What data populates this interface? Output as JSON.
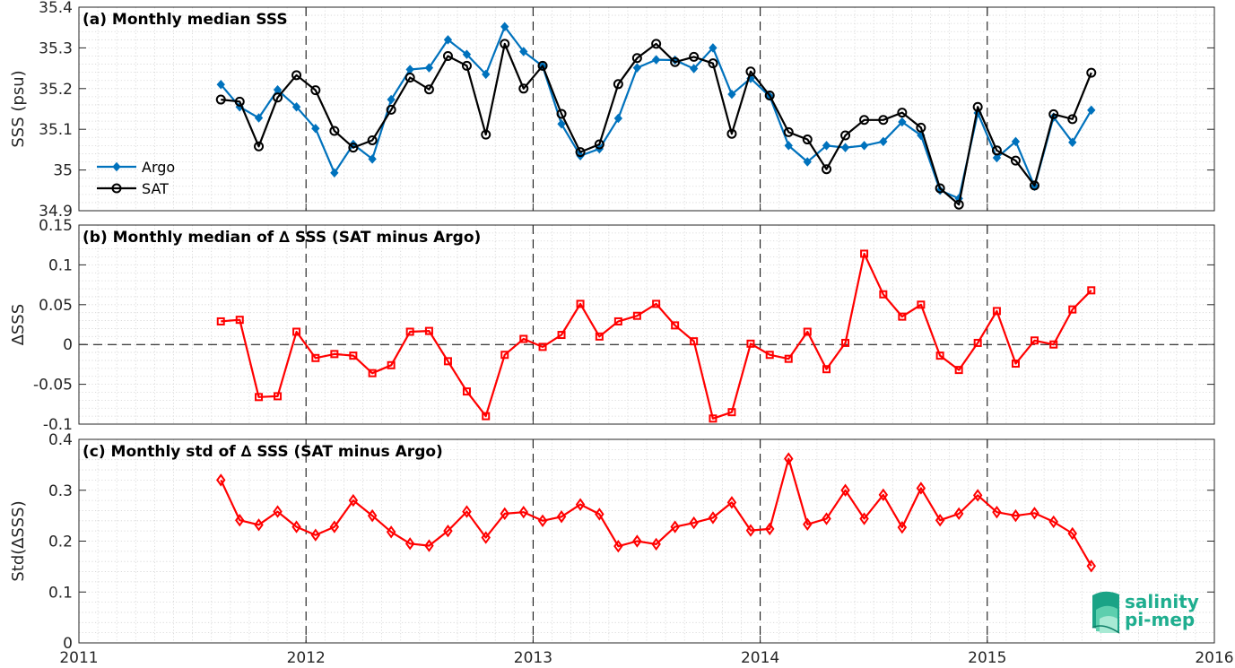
{
  "chart_data": [
    {
      "type": "line",
      "title": "(a) Monthly median SSS",
      "xlabel": "",
      "ylabel": "SSS (psu)",
      "xlim": [
        2011,
        2016
      ],
      "ylim": [
        34.9,
        35.4
      ],
      "yticks": [
        34.9,
        35,
        35.1,
        35.2,
        35.3,
        35.4
      ],
      "ytick_labels": [
        "34.9",
        "35",
        "35.1",
        "35.2",
        "35.3",
        "35.4"
      ],
      "grid": true,
      "legend": "bottom-left",
      "x": [
        2011.625,
        2011.708,
        2011.792,
        2011.875,
        2011.958,
        2012.042,
        2012.125,
        2012.208,
        2012.292,
        2012.375,
        2012.458,
        2012.542,
        2012.625,
        2012.708,
        2012.792,
        2012.875,
        2012.958,
        2013.042,
        2013.125,
        2013.208,
        2013.292,
        2013.375,
        2013.458,
        2013.542,
        2013.625,
        2013.708,
        2013.792,
        2013.875,
        2013.958,
        2014.042,
        2014.125,
        2014.208,
        2014.292,
        2014.375,
        2014.458,
        2014.542,
        2014.625,
        2014.708,
        2014.792,
        2014.875,
        2014.958,
        2015.042,
        2015.125,
        2015.208,
        2015.292,
        2015.375,
        2015.458
      ],
      "series": [
        {
          "name": "Argo",
          "color": "#0072BD",
          "marker": "diamond",
          "values": [
            35.21,
            35.155,
            35.128,
            35.197,
            35.155,
            35.102,
            34.993,
            35.063,
            35.027,
            35.173,
            35.247,
            35.251,
            35.32,
            35.284,
            35.235,
            35.352,
            35.291,
            35.255,
            35.113,
            35.035,
            35.052,
            35.127,
            35.251,
            35.271,
            35.27,
            35.249,
            35.3,
            35.186,
            35.225,
            35.181,
            35.06,
            35.02,
            35.06,
            35.055,
            35.06,
            35.07,
            35.118,
            35.085,
            34.95,
            34.93,
            35.14,
            35.03,
            35.07,
            34.96,
            35.13,
            35.068,
            35.147
          ]
        },
        {
          "name": "SAT",
          "color": "#000000",
          "marker": "circle",
          "values": [
            35.173,
            35.168,
            35.058,
            35.178,
            35.233,
            35.196,
            35.096,
            35.055,
            35.073,
            35.148,
            35.227,
            35.198,
            35.28,
            35.256,
            35.087,
            35.31,
            35.2,
            35.256,
            35.138,
            35.044,
            35.063,
            35.211,
            35.275,
            35.31,
            35.265,
            35.278,
            35.262,
            35.089,
            35.242,
            35.183,
            35.093,
            35.075,
            35.002,
            35.085,
            35.123,
            35.123,
            35.141,
            35.104,
            34.955,
            34.915,
            35.155,
            35.048,
            35.023,
            34.962,
            35.137,
            35.125,
            35.239
          ]
        }
      ]
    },
    {
      "type": "line",
      "title": "(b) Monthly median of ∆ SSS (SAT minus Argo)",
      "xlabel": "",
      "ylabel": "∆SSS",
      "xlim": [
        2011,
        2016
      ],
      "ylim": [
        -0.1,
        0.15
      ],
      "yticks": [
        -0.1,
        -0.05,
        0,
        0.05,
        0.1,
        0.15
      ],
      "ytick_labels": [
        "-0.1",
        "-0.05",
        "0",
        "0.05",
        "0.1",
        "0.15"
      ],
      "grid": true,
      "zero_line": true,
      "x": [
        2011.625,
        2011.708,
        2011.792,
        2011.875,
        2011.958,
        2012.042,
        2012.125,
        2012.208,
        2012.292,
        2012.375,
        2012.458,
        2012.542,
        2012.625,
        2012.708,
        2012.792,
        2012.875,
        2012.958,
        2013.042,
        2013.125,
        2013.208,
        2013.292,
        2013.375,
        2013.458,
        2013.542,
        2013.625,
        2013.708,
        2013.792,
        2013.875,
        2013.958,
        2014.042,
        2014.125,
        2014.208,
        2014.292,
        2014.375,
        2014.458,
        2014.542,
        2014.625,
        2014.708,
        2014.792,
        2014.875,
        2014.958,
        2015.042,
        2015.125,
        2015.208,
        2015.292,
        2015.375,
        2015.458
      ],
      "series": [
        {
          "name": "",
          "color": "#FF0000",
          "marker": "square",
          "values": [
            0.029,
            0.031,
            -0.066,
            -0.065,
            0.016,
            -0.017,
            -0.012,
            -0.014,
            -0.036,
            -0.026,
            0.016,
            0.017,
            -0.021,
            -0.059,
            -0.09,
            -0.013,
            0.007,
            -0.003,
            0.012,
            0.051,
            0.01,
            0.029,
            0.036,
            0.051,
            0.024,
            0.004,
            -0.093,
            -0.085,
            0.001,
            -0.013,
            -0.018,
            0.016,
            -0.031,
            0.002,
            0.114,
            0.063,
            0.035,
            0.05,
            -0.014,
            -0.032,
            0.002,
            0.042,
            -0.024,
            0.005,
            0.0,
            0.044,
            0.068
          ]
        }
      ]
    },
    {
      "type": "line",
      "title": "(c) Monthly std of ∆ SSS (SAT minus Argo)",
      "xlabel": "",
      "ylabel": "Std(∆SSS)",
      "xlim": [
        2011,
        2016
      ],
      "ylim": [
        0,
        0.4
      ],
      "yticks": [
        0,
        0.1,
        0.2,
        0.3,
        0.4
      ],
      "ytick_labels": [
        "0",
        "0.1",
        "0.2",
        "0.3",
        "0.4"
      ],
      "xticks": [
        2011,
        2012,
        2013,
        2014,
        2015,
        2016
      ],
      "xtick_labels": [
        "2011",
        "2012",
        "2013",
        "2014",
        "2015",
        "2016"
      ],
      "grid": true,
      "x": [
        2011.625,
        2011.708,
        2011.792,
        2011.875,
        2011.958,
        2012.042,
        2012.125,
        2012.208,
        2012.292,
        2012.375,
        2012.458,
        2012.542,
        2012.625,
        2012.708,
        2012.792,
        2012.875,
        2012.958,
        2013.042,
        2013.125,
        2013.208,
        2013.292,
        2013.375,
        2013.458,
        2013.542,
        2013.625,
        2013.708,
        2013.792,
        2013.875,
        2013.958,
        2014.042,
        2014.125,
        2014.208,
        2014.292,
        2014.375,
        2014.458,
        2014.542,
        2014.625,
        2014.708,
        2014.792,
        2014.875,
        2014.958,
        2015.042,
        2015.125,
        2015.208,
        2015.292,
        2015.375,
        2015.458
      ],
      "series": [
        {
          "name": "",
          "color": "#FF0000",
          "marker": "diamond-open",
          "values": [
            0.32,
            0.241,
            0.232,
            0.258,
            0.228,
            0.212,
            0.228,
            0.28,
            0.25,
            0.218,
            0.195,
            0.191,
            0.22,
            0.258,
            0.207,
            0.254,
            0.257,
            0.24,
            0.248,
            0.272,
            0.253,
            0.19,
            0.2,
            0.194,
            0.228,
            0.236,
            0.246,
            0.276,
            0.221,
            0.224,
            0.362,
            0.233,
            0.244,
            0.3,
            0.244,
            0.291,
            0.227,
            0.304,
            0.241,
            0.254,
            0.29,
            0.257,
            0.25,
            0.255,
            0.238,
            0.215,
            0.151
          ]
        }
      ]
    }
  ],
  "logo": {
    "line1": "salinity",
    "line2": "pi-mep",
    "color": "#1fae8f"
  }
}
